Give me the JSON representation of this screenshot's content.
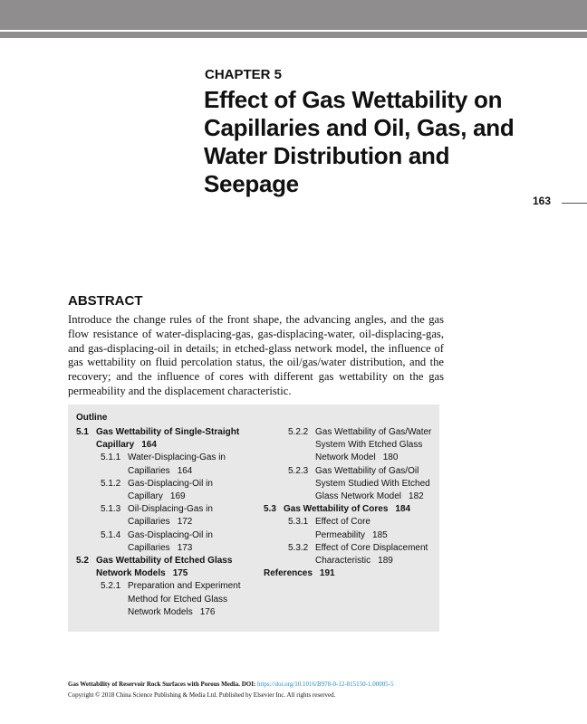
{
  "header": {
    "bar_color": "#8f8d8d"
  },
  "chapter": {
    "label": "CHAPTER 5",
    "title": "Effect of Gas Wettability on Capillaries and Oil, Gas, and Water Distribution and Seepage",
    "page_number": "163"
  },
  "abstract": {
    "heading": "ABSTRACT",
    "text": "Introduce the change rules of the front shape, the advancing angles, and the gas flow resistance of water-displacing-gas, gas-displacing-water, oil-displacing-gas, and gas-displacing-oil in details; in etched-glass network model, the influence of gas wettability on fluid percolation status, the oil/gas/water distribution, and the recovery; and the influence of cores with different gas wettability on the gas permeability and the displacement characteristic."
  },
  "outline": {
    "title": "Outline",
    "items": [
      {
        "num": "5.1",
        "text": "Gas Wettability of Single-Straight Capillary",
        "page": "164"
      },
      {
        "num": "5.1.1",
        "text": "Water-Displacing-Gas in Capillaries",
        "page": "164"
      },
      {
        "num": "5.1.2",
        "text": "Gas-Displacing-Oil in Capillary",
        "page": "169"
      },
      {
        "num": "5.1.3",
        "text": "Oil-Displacing-Gas in Capillaries",
        "page": "172"
      },
      {
        "num": "5.1.4",
        "text": "Gas-Displacing-Oil in Capillaries",
        "page": "173"
      },
      {
        "num": "5.2",
        "text": "Gas Wettability of Etched Glass Network Models",
        "page": "175"
      },
      {
        "num": "5.2.1",
        "text": "Preparation and Experiment Method for Etched Glass Network Models",
        "page": "176"
      },
      {
        "num": "5.2.2",
        "text": "Gas Wettability of Gas/Water System With Etched Glass Network Model",
        "page": "180"
      },
      {
        "num": "5.2.3",
        "text": "Gas Wettability of Gas/Oil System Studied With Etched Glass Network Model",
        "page": "182"
      },
      {
        "num": "5.3",
        "text": "Gas Wettability of Cores",
        "page": "184"
      },
      {
        "num": "5.3.1",
        "text": "Effect of Core Permeability",
        "page": "185"
      },
      {
        "num": "5.3.2",
        "text": "Effect of Core Displacement Characteristic",
        "page": "189"
      },
      {
        "num": "",
        "text": "References",
        "page": "191"
      }
    ]
  },
  "footer": {
    "book": "Gas Wettability of Reservoir Rock Surfaces with Porous Media. DOI: ",
    "doi": "https://doi.org/10.1016/B978-0-12-815150-1.00005-5",
    "copyright": "Copyright © 2018 China Science Publishing & Media Ltd. Published by Elsevier Inc. All rights reserved.",
    "link_color": "#2a8bc4"
  }
}
